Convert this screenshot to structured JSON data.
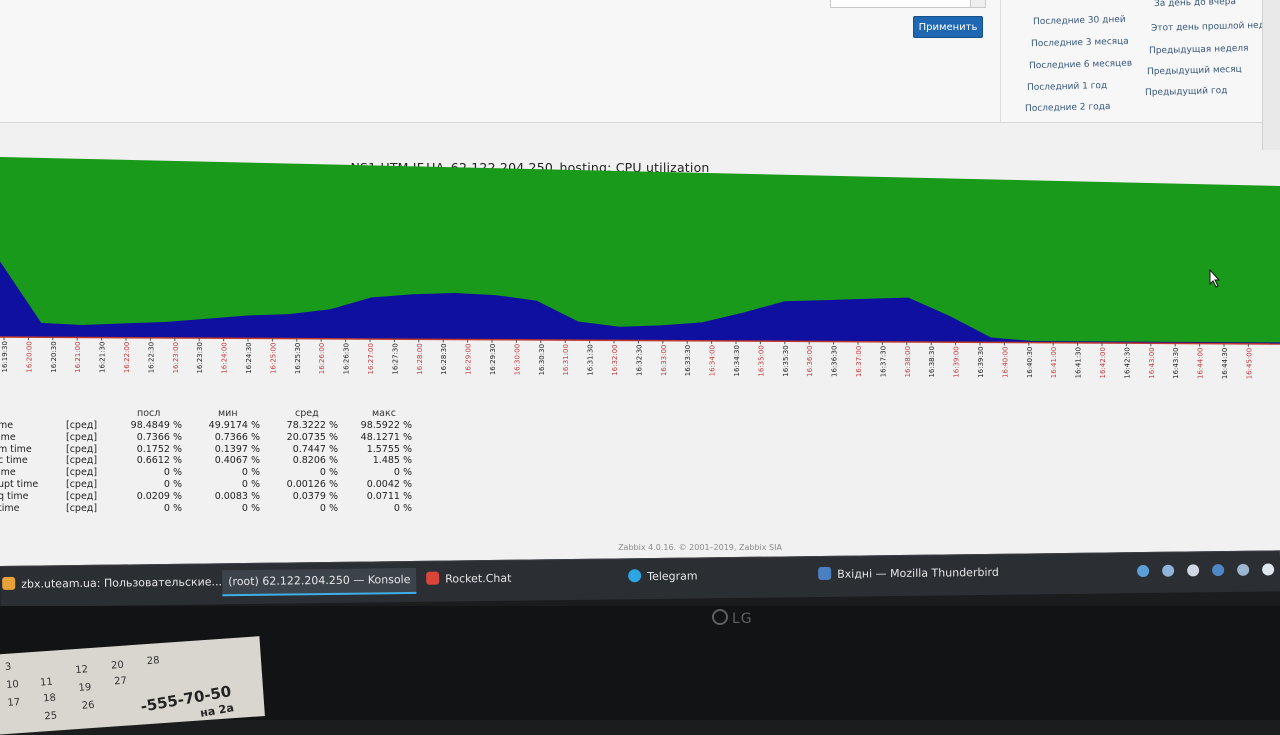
{
  "filter": {
    "apply_label": "Применить",
    "quick_ranges_col1": [
      "Последние 30 дней",
      "Последние 3 месяца",
      "Последние 6 месяцев",
      "Последний 1 год",
      "Последние 2 года"
    ],
    "quick_ranges_col2": [
      "За день до вчера",
      "Этот день прошлой недели",
      "Предыдущая неделя",
      "Предыдущий месяц",
      "Предыдущий год"
    ],
    "edge_letters": [
      "В",
      "Э",
      "В э"
    ]
  },
  "graph": {
    "title": "NS1.UTM.IF.UA_62.122.204.250_hosting: CPU utilization",
    "colors": {
      "idle": "#1a9a1a",
      "user": "#0f0fa0",
      "baseline": "#c0392b"
    },
    "x_ticks": [
      "16:19:30",
      "16:20:00",
      "16:20:30",
      "16:21:00",
      "16:21:30",
      "16:22:00",
      "16:22:30",
      "16:23:00",
      "16:23:30",
      "16:24:00",
      "16:24:30",
      "16:25:00",
      "16:25:30",
      "16:26:00",
      "16:26:30",
      "16:27:00",
      "16:27:30",
      "16:28:00",
      "16:28:30",
      "16:29:00",
      "16:29:30",
      "16:30:00",
      "16:30:30",
      "16:31:00",
      "16:31:30",
      "16:32:00",
      "16:32:30",
      "16:33:00",
      "16:33:30",
      "16:34:00",
      "16:34:30",
      "16:35:00",
      "16:35:30",
      "16:36:00",
      "16:36:30",
      "16:37:00",
      "16:37:30",
      "16:38:00",
      "16:38:30",
      "16:39:00",
      "16:39:30",
      "16:40:00",
      "16:40:30",
      "16:41:00",
      "16:41:30",
      "16:42:00",
      "16:42:30",
      "16:43:00",
      "16:43:30",
      "16:44:00",
      "16:44:30",
      "16:45:00"
    ],
    "x_tick_major_color": "#c23b3b",
    "x_tick_minor_color": "#222222",
    "user_series_pct": [
      42,
      8,
      7,
      8,
      9,
      11,
      13,
      14,
      17,
      24,
      26,
      27,
      26,
      23,
      11,
      8,
      9,
      11,
      17,
      24,
      25,
      26,
      27,
      16,
      3,
      1,
      1,
      1,
      1,
      1,
      1,
      1
    ]
  },
  "legend": {
    "headers": {
      "last": "посл",
      "min": "мин",
      "avg": "сред",
      "max": "макс"
    },
    "rows": [
      {
        "name": "me",
        "func": "[сред]",
        "last": "98.4849 %",
        "min": "49.9174 %",
        "avg": "78.3222 %",
        "max": "98.5922 %"
      },
      {
        "name": "ime",
        "func": "[сред]",
        "last": "0.7366 %",
        "min": "0.7366 %",
        "avg": "20.0735 %",
        "max": "48.1271 %"
      },
      {
        "name": "m time",
        "func": "[сред]",
        "last": "0.1752 %",
        "min": "0.1397 %",
        "avg": "0.7447 %",
        "max": "1.5755 %"
      },
      {
        "name": "c time",
        "func": "[сред]",
        "last": "0.6612 %",
        "min": "0.4067 %",
        "avg": "0.8206 %",
        "max": "1.485 %"
      },
      {
        "name": "ime",
        "func": "[сред]",
        "last": "0 %",
        "min": "0 %",
        "avg": "0 %",
        "max": "0 %"
      },
      {
        "name": "upt time",
        "func": "[сред]",
        "last": "0 %",
        "min": "0 %",
        "avg": "0.00126 %",
        "max": "0.0042 %"
      },
      {
        "name": "q time",
        "func": "[сред]",
        "last": "0.0209 %",
        "min": "0.0083 %",
        "avg": "0.0379 %",
        "max": "0.0711 %"
      },
      {
        "name": "time",
        "func": "[сред]",
        "last": "0 %",
        "min": "0 %",
        "avg": "0 %",
        "max": "0 %"
      }
    ]
  },
  "footer": {
    "text": "Zabbix 4.0.16. © 2001–2019, Zabbix SIA"
  },
  "taskbar": {
    "tasks": [
      {
        "label": "zbx.uteam.ua: Пользовательские...",
        "icon_color": "#e8a23a"
      },
      {
        "label": "(root) 62.122.204.250 — Konsole",
        "icon_color": "#2b2e33"
      },
      {
        "label": "Rocket.Chat",
        "icon_color": "#d9453b"
      },
      {
        "label": "Telegram",
        "icon_color": "#2ca5e0"
      },
      {
        "label": "Вхідні — Mozilla Thunderbird",
        "icon_color": "#4a7fc1"
      }
    ]
  },
  "monitor": {
    "brand": "LG"
  },
  "desk": {
    "calendar_days": [
      "3",
      "10",
      "11",
      "12",
      "17",
      "18",
      "19",
      "20",
      "25",
      "26",
      "27",
      "28"
    ],
    "phone": "-555-70-50",
    "address_fragment": "на 2а"
  }
}
